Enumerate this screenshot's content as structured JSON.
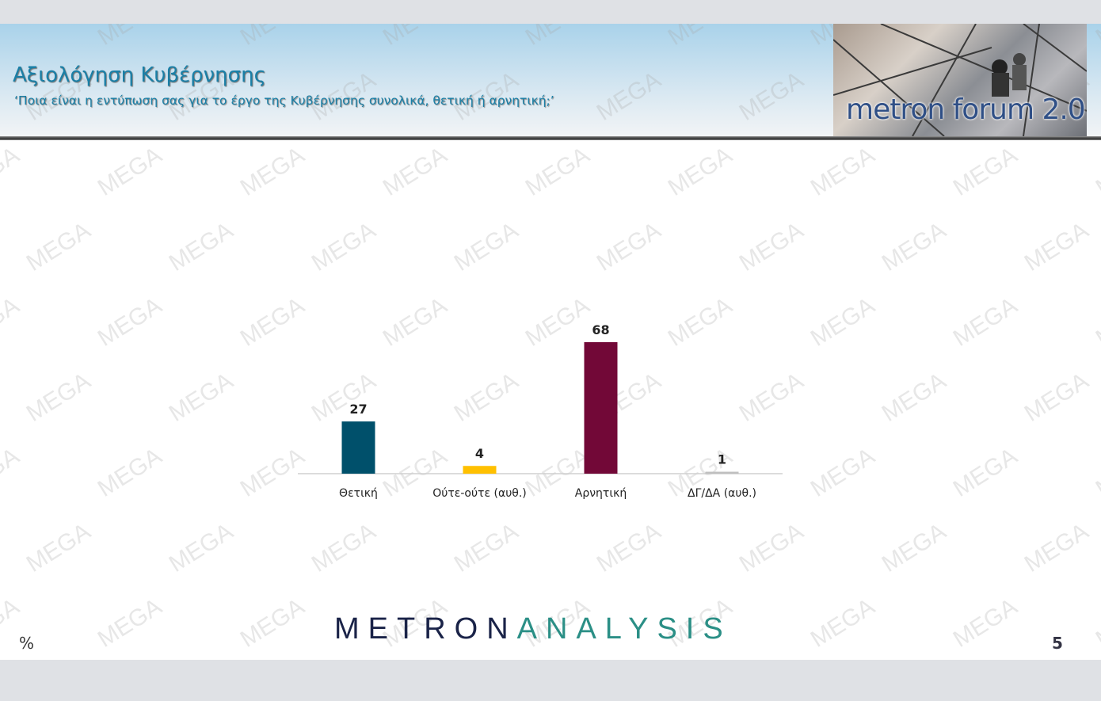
{
  "header": {
    "title": "Αξιολόγηση Κυβέρνησης",
    "subtitle": "‘Ποια είναι η εντύπωση σας για το έργο της Κυβέρνησης συνολικά, θετική ή αρνητική;’",
    "logo_text": "metron forum 2.0"
  },
  "watermark": "MEGA",
  "footer": {
    "brand_part1": "METRON",
    "brand_part2": "ANALYSIS",
    "unit": "%",
    "page_number": "5"
  },
  "colors": {
    "positive": "#00506b",
    "neutral": "#ffc000",
    "negative": "#720837",
    "dk": "#bfbfbf"
  },
  "chart_data": {
    "type": "bar",
    "categories": [
      "Θετική",
      "Ούτε-ούτε (αυθ.)",
      "Αρνητική",
      "ΔΓ/ΔΑ (αυθ.)"
    ],
    "values": [
      27,
      4,
      68,
      1
    ],
    "data_labels": [
      "27",
      "4",
      "68",
      "1"
    ],
    "bar_colors": [
      "#00506b",
      "#ffc000",
      "#720837",
      "#bfbfbf"
    ],
    "ylim": [
      0,
      100
    ],
    "grid": false,
    "unit": "%"
  }
}
